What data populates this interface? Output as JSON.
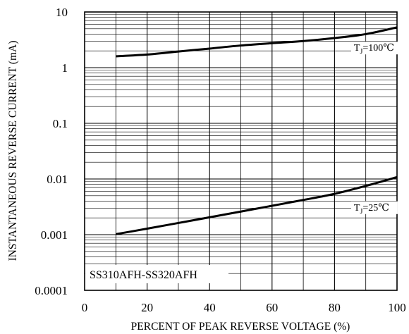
{
  "chart_data": {
    "type": "line",
    "title": "",
    "xlabel": "PERCENT OF PEAK REVERSE VOLTAGE (%)",
    "ylabel": "INSTANTANEOUS REVERSE CURRENT (mA)",
    "xlim": [
      0,
      100
    ],
    "ylim": [
      0.0001,
      10
    ],
    "y_scale": "log",
    "grid": true,
    "x_ticks": [
      0,
      20,
      40,
      60,
      80,
      100
    ],
    "x_tick_labels": [
      "0",
      "20",
      "40",
      "60",
      "80",
      "100"
    ],
    "y_ticks": [
      0.0001,
      0.001,
      0.01,
      0.1,
      1,
      10
    ],
    "y_tick_labels": [
      "0.0001",
      "0.001",
      "0.01",
      "0.1",
      "1",
      "10"
    ],
    "series": [
      {
        "name": "Tj=100℃",
        "label_main": "T",
        "label_sub": "J",
        "label_rest": "=100℃",
        "x": [
          10,
          20,
          30,
          40,
          50,
          60,
          70,
          80,
          90,
          100
        ],
        "y": [
          1.6,
          1.72,
          1.95,
          2.2,
          2.5,
          2.75,
          3.0,
          3.4,
          4.0,
          5.3
        ]
      },
      {
        "name": "Tj=25℃",
        "label_main": "T",
        "label_sub": "J",
        "label_rest": "=25℃",
        "x": [
          10,
          20,
          30,
          40,
          50,
          60,
          70,
          80,
          90,
          100
        ],
        "y": [
          0.00102,
          0.00128,
          0.00162,
          0.00205,
          0.0026,
          0.0033,
          0.0042,
          0.0054,
          0.0075,
          0.0108
        ]
      }
    ],
    "annotation": "SS310AFH-SS320AFH",
    "colors": {
      "line": "#000000",
      "grid": "#000000",
      "background": "#ffffff"
    }
  }
}
